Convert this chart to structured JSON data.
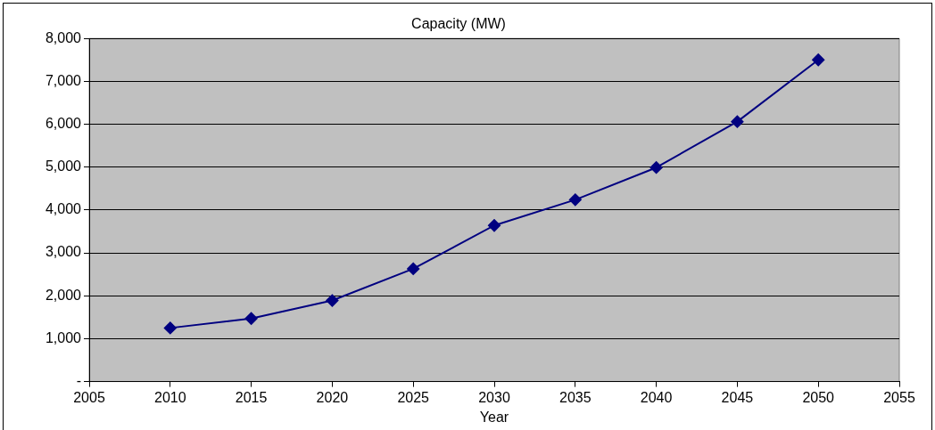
{
  "chart_data": {
    "type": "line",
    "title": "Capacity (MW)",
    "xlabel": "Year",
    "x": [
      2010,
      2015,
      2020,
      2025,
      2030,
      2035,
      2040,
      2045,
      2050
    ],
    "series": [
      {
        "color": "#000080",
        "values": [
          1250,
          1470,
          1890,
          2630,
          3640,
          4240,
          4990,
          6060,
          7500
        ]
      }
    ],
    "xlim": [
      2005,
      2055
    ],
    "xticks": [
      2005,
      2010,
      2015,
      2020,
      2025,
      2030,
      2035,
      2040,
      2045,
      2050,
      2055
    ],
    "ylim": [
      0,
      8000
    ],
    "yticks": [
      {
        "value": 0,
        "label": "-"
      },
      {
        "value": 1000,
        "label": "1,000"
      },
      {
        "value": 2000,
        "label": "2,000"
      },
      {
        "value": 3000,
        "label": "3,000"
      },
      {
        "value": 4000,
        "label": "4,000"
      },
      {
        "value": 5000,
        "label": "5,000"
      },
      {
        "value": 6000,
        "label": "6,000"
      },
      {
        "value": 7000,
        "label": "7,000"
      },
      {
        "value": 8000,
        "label": "8,000"
      }
    ],
    "grid": "y",
    "marker": "diamond",
    "line_style": "solid",
    "legend": false
  }
}
